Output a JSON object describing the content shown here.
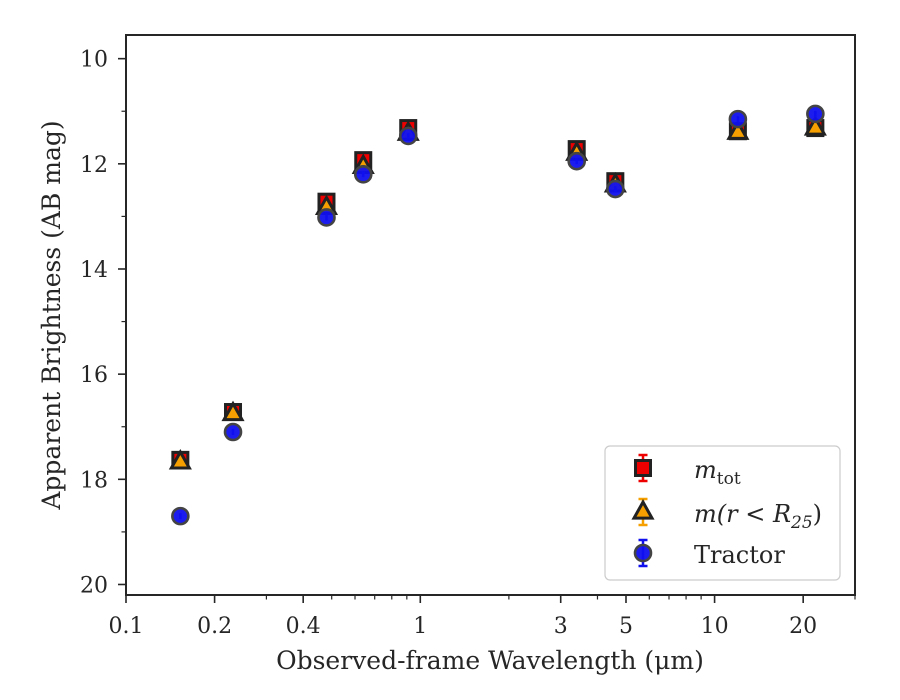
{
  "chart_data": {
    "type": "scatter",
    "xlabel": "Observed-frame Wavelength (μm)",
    "ylabel": "Apparent Brightness (AB mag)",
    "x_scale": "log",
    "xlim": [
      0.1,
      30
    ],
    "ylim": [
      20.2,
      9.55
    ],
    "y_inverted": true,
    "grid": false,
    "legend_position": "lower-right",
    "x_ticks": [
      {
        "value": 0.1,
        "label": "0.1"
      },
      {
        "value": 0.2,
        "label": "0.2"
      },
      {
        "value": 0.4,
        "label": "0.4"
      },
      {
        "value": 1,
        "label": "1"
      },
      {
        "value": 3,
        "label": "3"
      },
      {
        "value": 5,
        "label": "5"
      },
      {
        "value": 10,
        "label": "10"
      },
      {
        "value": 20,
        "label": "20"
      }
    ],
    "x_minor_ticks": [
      0.3,
      0.5,
      0.6,
      0.7,
      0.8,
      0.9,
      2,
      4,
      6,
      7,
      8,
      9,
      30
    ],
    "y_ticks": [
      {
        "value": 10,
        "label": "10"
      },
      {
        "value": 12,
        "label": "12"
      },
      {
        "value": 14,
        "label": "14"
      },
      {
        "value": 16,
        "label": "16"
      },
      {
        "value": 18,
        "label": "18"
      },
      {
        "value": 20,
        "label": "20"
      }
    ],
    "y_minor_ticks": [
      11,
      13,
      15,
      17,
      19
    ],
    "series": [
      {
        "name": "m_tot",
        "label_main": "m",
        "label_sub": "tot",
        "marker": "square",
        "color": "#ee0000",
        "edge_color": "#222222",
        "points": [
          {
            "x": 0.153,
            "y": 17.63
          },
          {
            "x": 0.231,
            "y": 16.72
          },
          {
            "x": 0.48,
            "y": 12.72
          },
          {
            "x": 0.64,
            "y": 11.93
          },
          {
            "x": 0.91,
            "y": 11.32
          },
          {
            "x": 3.4,
            "y": 11.72
          },
          {
            "x": 4.6,
            "y": 12.33
          },
          {
            "x": 12.0,
            "y": 11.38
          },
          {
            "x": 22.0,
            "y": 11.32
          }
        ]
      },
      {
        "name": "m(r < R25)",
        "label_main": "m(r < R",
        "label_sub": "25",
        "label_close": ")",
        "marker": "triangle",
        "color": "#f5a000",
        "edge_color": "#222222",
        "points": [
          {
            "x": 0.153,
            "y": 17.67
          },
          {
            "x": 0.231,
            "y": 16.75
          },
          {
            "x": 0.48,
            "y": 12.83
          },
          {
            "x": 0.64,
            "y": 12.05
          },
          {
            "x": 0.91,
            "y": 11.42
          },
          {
            "x": 3.4,
            "y": 11.8
          },
          {
            "x": 4.6,
            "y": 12.4
          },
          {
            "x": 12.0,
            "y": 11.4
          },
          {
            "x": 22.0,
            "y": 11.32
          }
        ]
      },
      {
        "name": "Tractor",
        "label_main": "Tractor",
        "marker": "circle",
        "color": "#1010ee",
        "edge_color": "#444444",
        "points": [
          {
            "x": 0.153,
            "y": 18.7
          },
          {
            "x": 0.231,
            "y": 17.1
          },
          {
            "x": 0.48,
            "y": 13.02
          },
          {
            "x": 0.64,
            "y": 12.2
          },
          {
            "x": 0.91,
            "y": 11.47
          },
          {
            "x": 3.4,
            "y": 11.95
          },
          {
            "x": 4.6,
            "y": 12.48
          },
          {
            "x": 12.0,
            "y": 11.15
          },
          {
            "x": 22.0,
            "y": 11.05
          }
        ]
      }
    ]
  }
}
